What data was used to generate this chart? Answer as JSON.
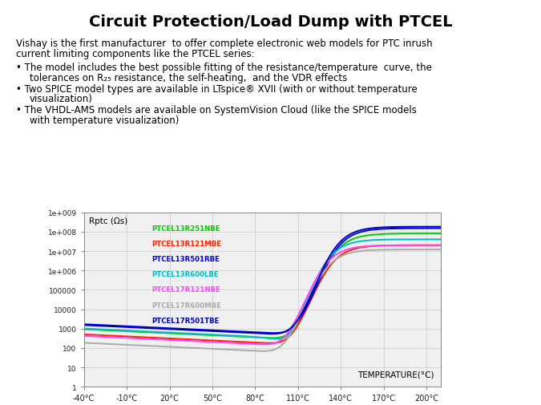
{
  "title": "Circuit Protection/Load Dump with PTCEL",
  "intro_line1": "Vishay is the first manufacturer  to offer complete electronic web models for PTC inrush",
  "intro_line2": "current limiting components like the PTCEL series:",
  "bullet1_line1": "The model includes the best possible fitting of the resistance/temperature  curve, the",
  "bullet1_line2": "tolerances on R₂₅ resistance, the self-heating,  and the VDR effects",
  "bullet2_line1": "Two SPICE model types are available in LTspice® XVII (with or without temperature",
  "bullet2_line2": "visualization)",
  "bullet3_line1": "The VHDL-AMS models are available on SystemVision Cloud (like the SPICE models",
  "bullet3_line2": "with temperature visualization)",
  "ylabel": "Rptc (Ωs)",
  "xlabel": "TEMPERATURE(°C)",
  "series": [
    {
      "name": "PTCEL13R251NBE",
      "color": "#00cc00",
      "high": 80000000.0,
      "t_sw": 122,
      "low": 550,
      "min": 230
    },
    {
      "name": "PTCEL13R121MBE",
      "color": "#ff2200",
      "high": 20000000.0,
      "t_sw": 120,
      "low": 300,
      "min": 120
    },
    {
      "name": "PTCEL13R501RBE",
      "color": "#0000ee",
      "high": 150000000.0,
      "t_sw": 124,
      "low": 1000,
      "min": 450
    },
    {
      "name": "PTCEL13R600LBE",
      "color": "#00bbcc",
      "high": 40000000.0,
      "t_sw": 117,
      "low": 600,
      "min": 58
    },
    {
      "name": "PTCEL17R121NBE",
      "color": "#ff44ff",
      "high": 20000000.0,
      "t_sw": 116,
      "low": 250,
      "min": 100
    },
    {
      "name": "PTCEL17R600MBE",
      "color": "#aaaaaa",
      "high": 12000000.0,
      "t_sw": 116,
      "low": 110,
      "min": 52
    },
    {
      "name": "PTCEL17R501TBE",
      "color": "#0000aa",
      "high": 180000000.0,
      "t_sw": 123,
      "low": 900,
      "min": 420
    }
  ],
  "xmin": -40,
  "xmax": 210,
  "ymin": 1,
  "ymax": 1000000000,
  "xticks": [
    -40,
    -10,
    20,
    50,
    80,
    110,
    140,
    170,
    200
  ],
  "xtick_labels": [
    "-40°C",
    "-10°C",
    "20°C",
    "50°C",
    "80°C",
    "110°C",
    "140°C",
    "170°C",
    "200°C"
  ],
  "yticks": [
    1,
    10,
    100,
    1000,
    10000,
    100000,
    1000000,
    10000000,
    100000000,
    1000000000
  ],
  "ytick_labels": [
    "1",
    "10",
    "100",
    "1000",
    "10000",
    "100000",
    "1e+006",
    "1e+007",
    "1e+008",
    "1e+009"
  ],
  "bg_color": "#f0f0f0",
  "grid_color": "#cccccc",
  "fig_width": 6.75,
  "fig_height": 5.06
}
